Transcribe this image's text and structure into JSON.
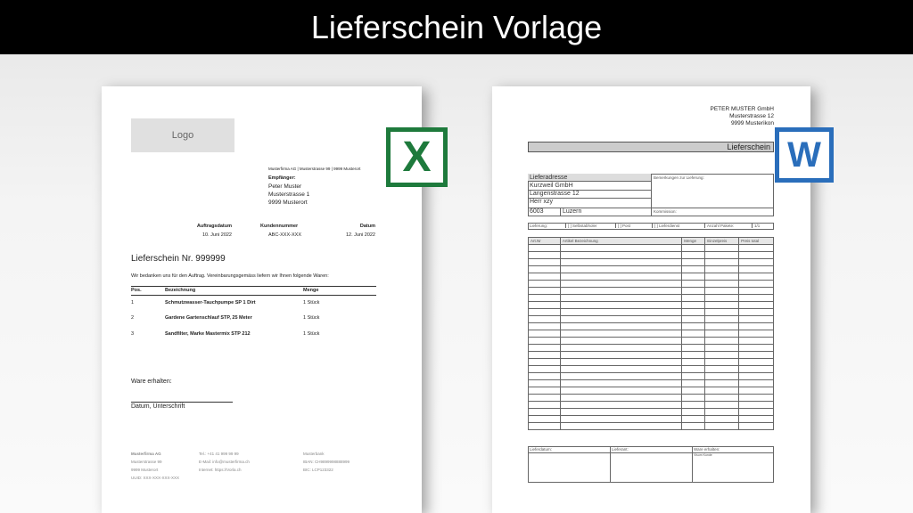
{
  "title": "Lieferschein Vorlage",
  "left_doc": {
    "logo": "Logo",
    "sender_line": "Musterfirma AG | Musterstrasse 99 | 9999 Musterort",
    "recipient_label": "Empfänger:",
    "recipient": [
      "Peter Muster",
      "Musterstrasse 1",
      "9999 Musterort"
    ],
    "meta": [
      {
        "label": "Auftragsdatum",
        "value": "10. Juni 2022"
      },
      {
        "label": "Kundennummer",
        "value": "ABC-XXX-XXX"
      },
      {
        "label": "Datum",
        "value": "12. Juni 2022"
      }
    ],
    "heading": "Lieferschein Nr. 999999",
    "intro": "Wir bedanken uns für den Auftrag. Vereinbarungsgemäss liefern wir Ihnen folgende Waren:",
    "columns": [
      "Pos.",
      "Bezeichnung",
      "Menge"
    ],
    "rows": [
      [
        "1",
        "Schmutzwasser-Tauchpumpe SP 1 Dirt",
        "1 Stück"
      ],
      [
        "2",
        "Gardene Gartenschlauf STP, 25 Meter",
        "1 Stück"
      ],
      [
        "3",
        "Sandfilter, Marke Mastermix STP 212",
        "1 Stück"
      ]
    ],
    "received": "Ware  erhalten:",
    "signature": "Datum, Unterschrift",
    "footer": [
      [
        "Musterfirma AG",
        "Musterstrasse 99",
        "9999 Musterort",
        "UUID: XXX-XXX-XXX-XXX"
      ],
      [
        "Tel.: +41 41 999 99 99",
        "E-Mail: info@musterfirma.ch",
        "Internet: https://Vorla.ch"
      ],
      [
        "Musterbank",
        "IBAN: CH9899998888999",
        "BIC: LCP123322"
      ]
    ]
  },
  "right_doc": {
    "company": [
      "PETER MUSTER GmbH",
      "Musterstrasse 12",
      "9999 Musterikon"
    ],
    "banner": "Lieferschein",
    "address_label": "Lieferadresse",
    "address": [
      "Kurzweil GmbH",
      "Langenstrasse 12",
      "Herr xzy"
    ],
    "zip": "6003",
    "city": "Luzern",
    "remarks_label": "Bemerkungen zur Lieferung:",
    "commission_label": "Kommission:",
    "delivery": [
      "Lieferung:",
      "[  ] Selbstabholer",
      "[  ] Post",
      "[  ] Lieferdienst",
      "Anzahl Pakete:",
      "1/1"
    ],
    "columns": [
      "Art.Nr",
      "Artikel Bezeichnung",
      "Menge",
      "Einzelpreis",
      "Preis total"
    ],
    "footer_labels": [
      "Lieferdatum:",
      "Lieferant:",
      "Ware erhalten:"
    ],
    "footer_sub": "Visum Kunde"
  },
  "icons": {
    "excel": "excel-icon",
    "word": "word-icon",
    "excel_color": "#1e7a3c",
    "word_color": "#2a6ebb"
  }
}
